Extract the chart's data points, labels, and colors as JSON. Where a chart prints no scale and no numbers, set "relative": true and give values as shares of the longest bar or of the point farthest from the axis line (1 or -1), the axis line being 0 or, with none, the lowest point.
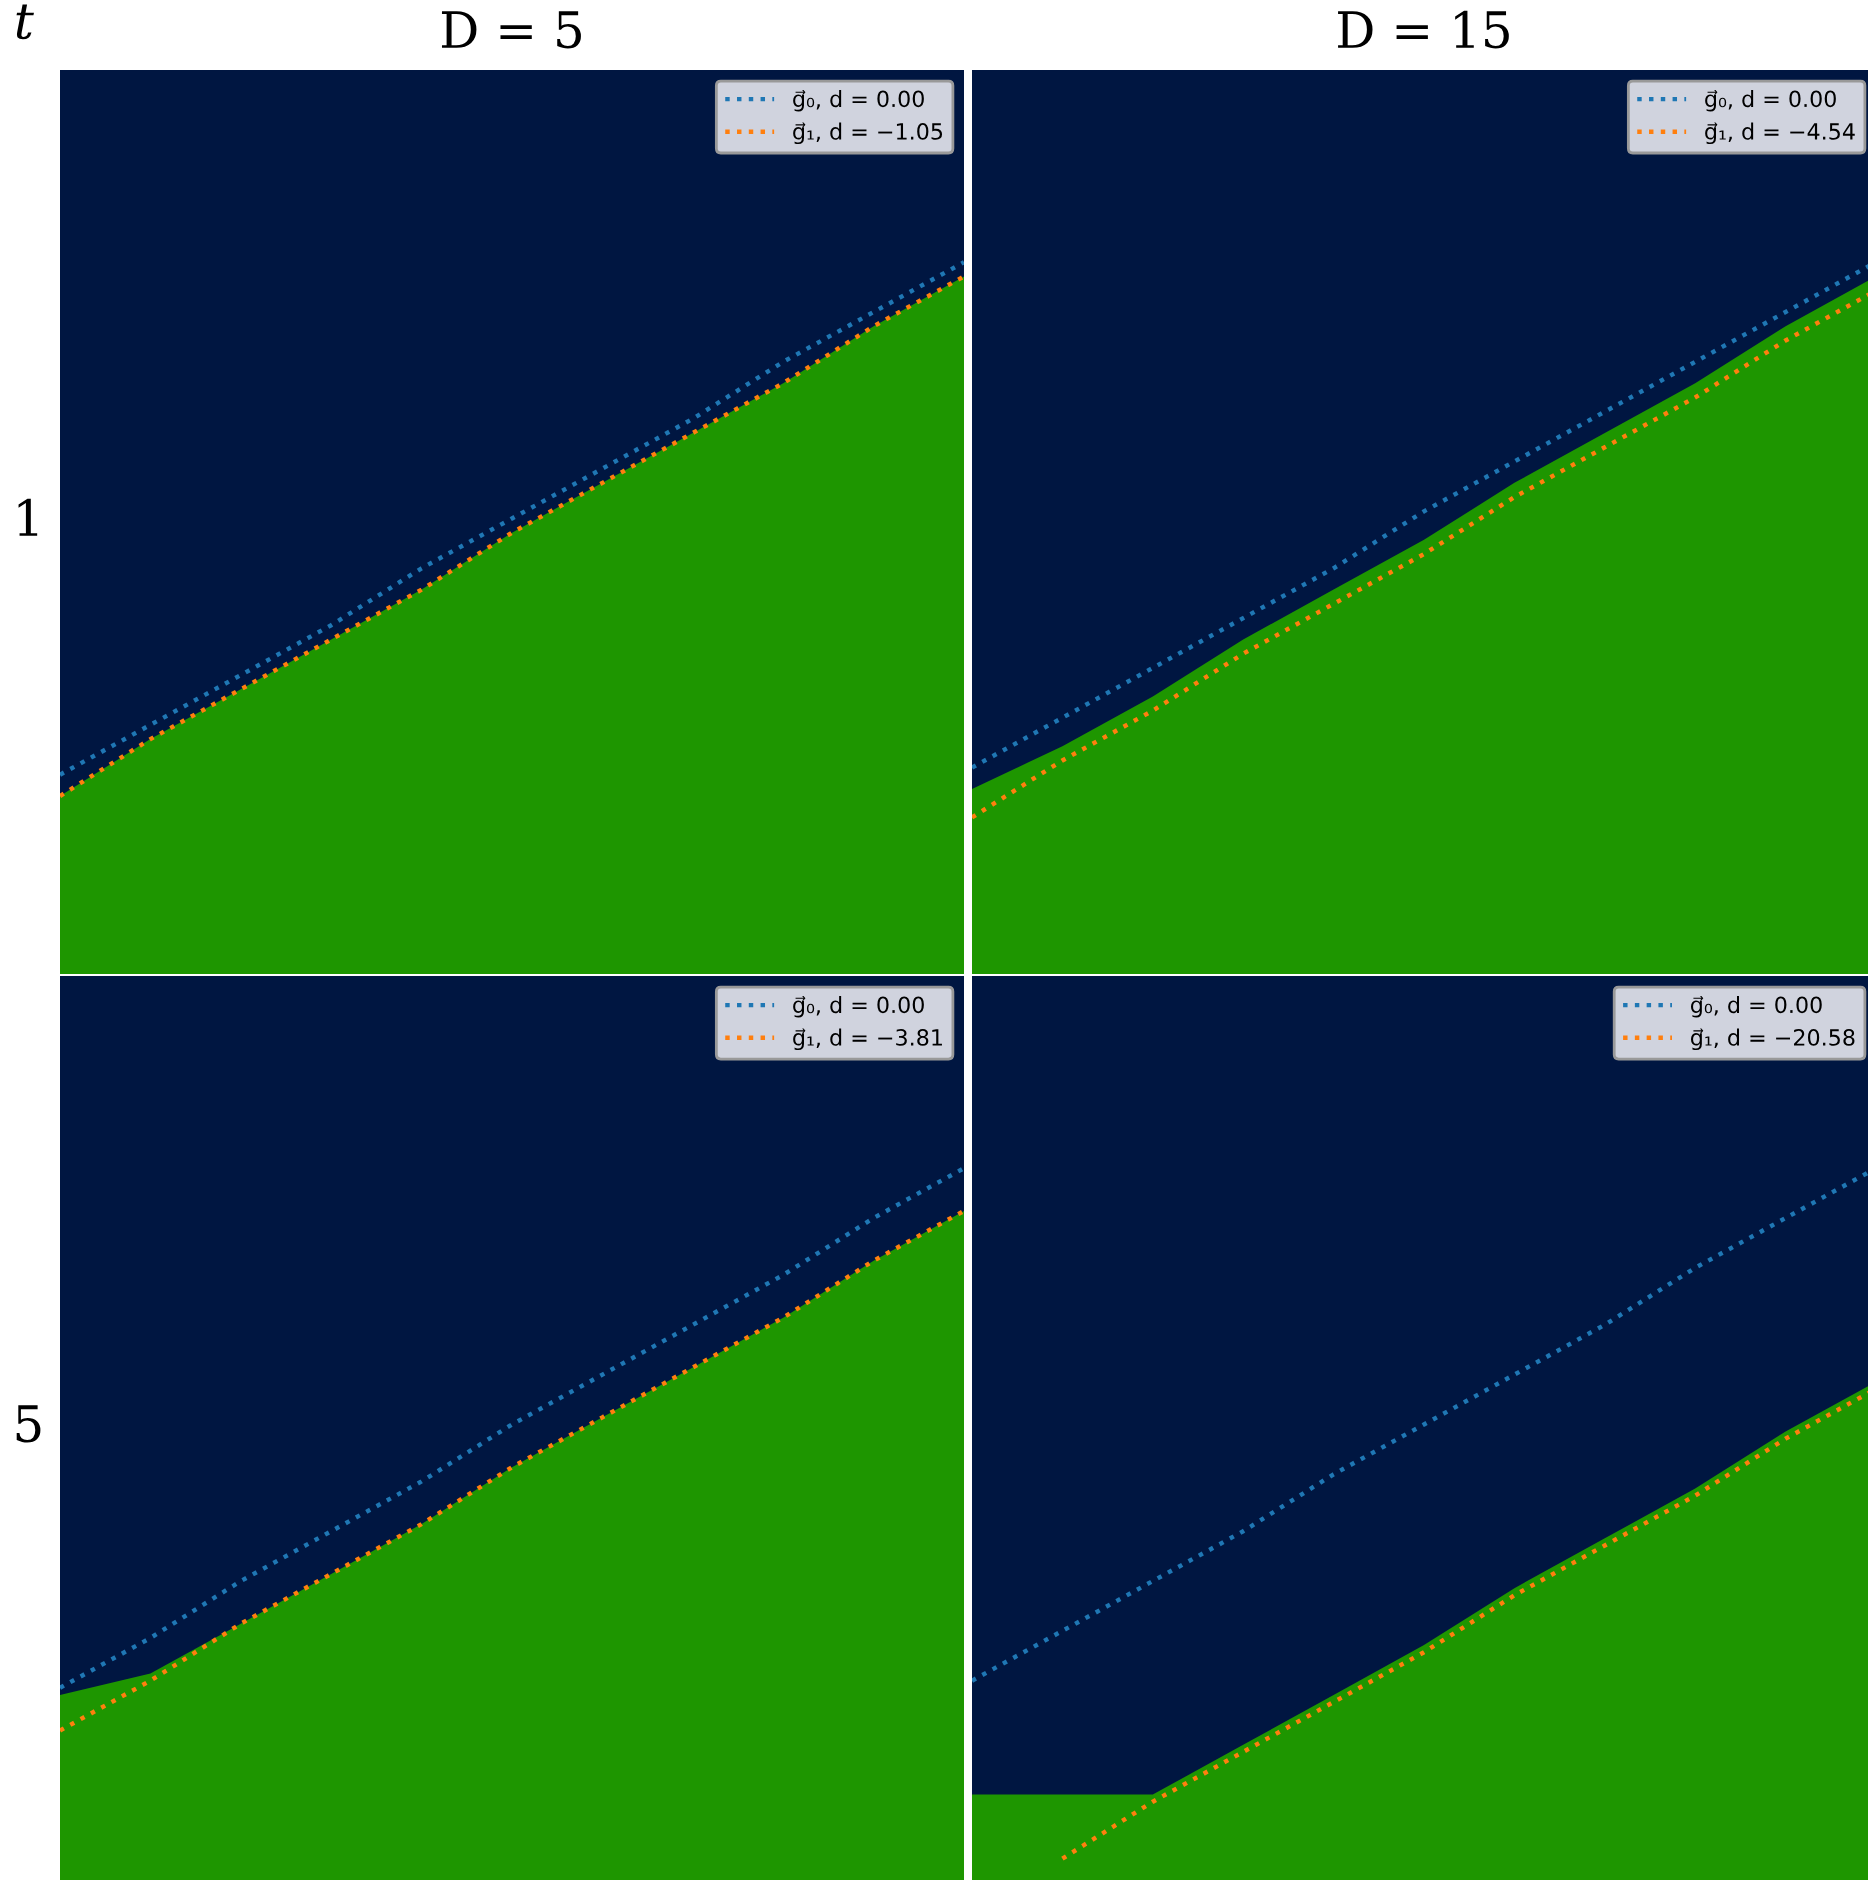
{
  "chart_data": [
    {
      "type": "line",
      "relative": true,
      "title": "D = 5",
      "annotations": [
        "t",
        "1"
      ],
      "legend": "top right",
      "line_style": "dotted",
      "marker": "none",
      "categories": [
        null,
        null,
        null,
        null,
        null,
        null,
        null,
        null,
        null,
        null,
        null
      ],
      "series": [
        {
          "type": "area",
          "color": "#1e9600",
          "values": [
            0.25,
            0.33,
            0.4,
            0.47,
            0.54,
            0.62,
            0.69,
            0.76,
            0.83,
            0.91,
            0.98
          ]
        },
        {
          "name": "g⃗₀, d = 0.00",
          "color": "#1f77b4",
          "values": [
            0.28,
            0.35,
            0.42,
            0.49,
            0.57,
            0.64,
            0.71,
            0.78,
            0.86,
            0.93,
            1.0
          ]
        },
        {
          "name": "g⃗₁, d = −1.05",
          "color": "#ff7f0e",
          "values": [
            0.25,
            0.33,
            0.4,
            0.47,
            0.54,
            0.62,
            0.69,
            0.76,
            0.83,
            0.91,
            0.98
          ]
        }
      ]
    },
    {
      "type": "line",
      "relative": true,
      "title": "D = 15",
      "legend": "top right",
      "line_style": "dotted",
      "marker": "none",
      "categories": [
        null,
        null,
        null,
        null,
        null,
        null,
        null,
        null,
        null,
        null,
        null
      ],
      "series": [
        {
          "type": "area",
          "color": "#1e9600",
          "values": [
            0.26,
            0.32,
            0.39,
            0.47,
            0.54,
            0.61,
            0.69,
            0.76,
            0.83,
            0.91,
            0.98
          ]
        },
        {
          "name": "g⃗₀, d = 0.00",
          "color": "#1f77b4",
          "values": [
            0.29,
            0.36,
            0.43,
            0.5,
            0.57,
            0.65,
            0.72,
            0.79,
            0.86,
            0.93,
            1.0
          ]
        },
        {
          "name": "g⃗₁, d = −4.54",
          "color": "#ff7f0e",
          "values": [
            0.22,
            0.3,
            0.37,
            0.45,
            0.52,
            0.59,
            0.67,
            0.74,
            0.81,
            0.89,
            0.96
          ]
        }
      ]
    },
    {
      "type": "line",
      "relative": true,
      "annotations": [
        "5"
      ],
      "legend": "top right",
      "line_style": "dotted",
      "marker": "none",
      "categories": [
        null,
        null,
        null,
        null,
        null,
        null,
        null,
        null,
        null,
        null,
        null
      ],
      "series": [
        {
          "type": "area",
          "color": "#1e9600",
          "values": [
            0.26,
            0.29,
            0.36,
            0.43,
            0.5,
            0.58,
            0.65,
            0.72,
            0.79,
            0.87,
            0.94
          ]
        },
        {
          "name": "g⃗₀, d = 0.00",
          "color": "#1f77b4",
          "values": [
            0.27,
            0.34,
            0.42,
            0.49,
            0.56,
            0.64,
            0.71,
            0.78,
            0.85,
            0.93,
            1.0
          ]
        },
        {
          "name": "g⃗₁, d = −3.81",
          "color": "#ff7f0e",
          "values": [
            0.21,
            0.28,
            0.36,
            0.43,
            0.5,
            0.58,
            0.65,
            0.72,
            0.79,
            0.87,
            0.94
          ]
        }
      ]
    },
    {
      "type": "line",
      "relative": true,
      "legend": "top right",
      "line_style": "dotted",
      "marker": "none",
      "categories": [
        null,
        null,
        null,
        null,
        null,
        null,
        null,
        null,
        null,
        null,
        null
      ],
      "series": [
        {
          "type": "area",
          "color": "#1e9600",
          "values": [
            0.12,
            0.12,
            0.12,
            0.19,
            0.26,
            0.33,
            0.41,
            0.48,
            0.55,
            0.63,
            0.7
          ]
        },
        {
          "name": "g⃗₀, d = 0.00",
          "color": "#1f77b4",
          "values": [
            0.28,
            0.35,
            0.42,
            0.49,
            0.57,
            0.64,
            0.71,
            0.78,
            0.86,
            0.93,
            1.0
          ]
        },
        {
          "name": "g⃗₁, d = −20.58",
          "color": "#ff7f0e",
          "values": [
            null,
            0.03,
            0.11,
            0.18,
            0.25,
            0.32,
            0.4,
            0.47,
            0.54,
            0.62,
            0.69
          ]
        }
      ]
    }
  ]
}
